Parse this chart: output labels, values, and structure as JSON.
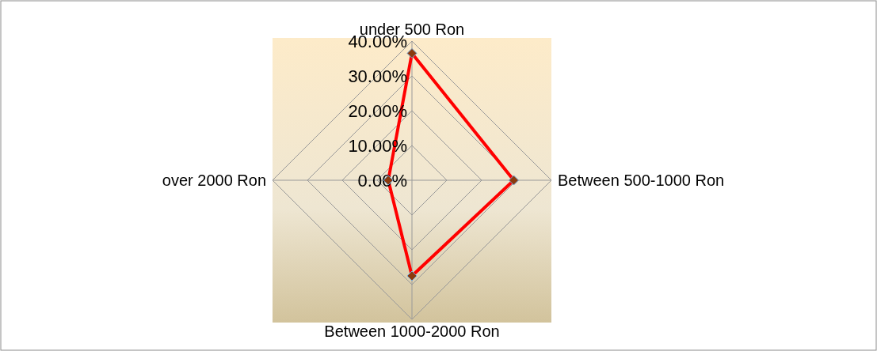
{
  "chart_data": {
    "type": "radar",
    "categories": [
      "under 500 Ron",
      "Between 500-1000 Ron",
      "Between 1000-2000 Ron",
      "over 2000 Ron"
    ],
    "series": [
      {
        "color": "#ff0000",
        "values": [
          36.5,
          29.2,
          27.5,
          6.8
        ]
      }
    ],
    "ylim": [
      0,
      40
    ],
    "yticks": [
      {
        "value": 0,
        "label": "0.00%"
      },
      {
        "value": 10,
        "label": "10.00%"
      },
      {
        "value": 20,
        "label": "20.00%"
      },
      {
        "value": 30,
        "label": "30.00%"
      },
      {
        "value": 40,
        "label": "40.00%"
      }
    ],
    "grid": true,
    "marker": "diamond"
  }
}
